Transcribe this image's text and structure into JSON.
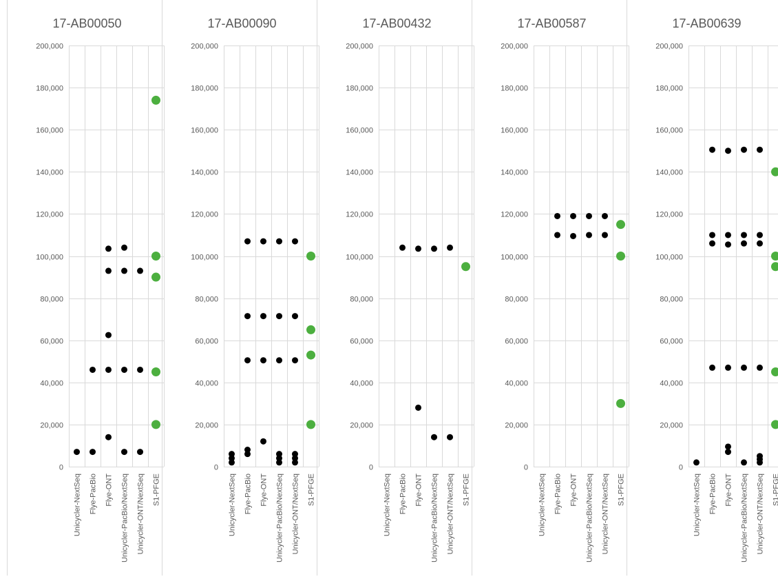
{
  "figure": {
    "colors": {
      "assembly_dot": "#000000",
      "pfge_dot": "#4caf3f",
      "gridline": "#d9d9d9",
      "text": "#595959"
    }
  },
  "chart_data": [
    {
      "type": "scatter",
      "title": "17-AB00050",
      "categories": [
        "Unicycler-NextSeq",
        "Flye-PacBio",
        "Flye-ONT",
        "Unicycler-PacBio/NextSeq",
        "Unicycler-ONT/NextSeq",
        "S1-PFGE"
      ],
      "ylim": [
        0,
        200000
      ],
      "yticks": [
        0,
        20000,
        40000,
        60000,
        80000,
        100000,
        120000,
        140000,
        160000,
        180000,
        200000
      ],
      "ytick_labels": [
        "0",
        "20,000",
        "40,000",
        "60,000",
        "80,000",
        "100,000",
        "120,000",
        "140,000",
        "160,000",
        "180,000",
        "200,000"
      ],
      "grid": true,
      "points": {
        "Unicycler-NextSeq": [
          7000
        ],
        "Flye-PacBio": [
          7000,
          46000
        ],
        "Flye-ONT": [
          14000,
          46000,
          62500,
          93000,
          103500
        ],
        "Unicycler-PacBio/NextSeq": [
          7000,
          46000,
          93000,
          104000
        ],
        "Unicycler-ONT/NextSeq": [
          7000,
          46000,
          93000
        ],
        "S1-PFGE": [
          20000,
          45000,
          90000,
          100000,
          174000
        ]
      }
    },
    {
      "type": "scatter",
      "title": "17-AB00090",
      "categories": [
        "Unicycler-NextSeq",
        "Flye-PacBio",
        "Flye-ONT",
        "Unicycler-PacBio/NextSeq",
        "Unicycler-ONT/NextSeq",
        "S1-PFGE"
      ],
      "ylim": [
        0,
        200000
      ],
      "yticks": [
        0,
        20000,
        40000,
        60000,
        80000,
        100000,
        120000,
        140000,
        160000,
        180000,
        200000
      ],
      "ytick_labels": [
        "0",
        "20,000",
        "40,000",
        "60,000",
        "80,000",
        "100,000",
        "120,000",
        "140,000",
        "160,000",
        "180,000",
        "200,000"
      ],
      "grid": true,
      "points": {
        "Unicycler-NextSeq": [
          2000,
          4000,
          6000
        ],
        "Flye-PacBio": [
          6000,
          8000,
          50500,
          71500,
          107000
        ],
        "Flye-ONT": [
          12000,
          50500,
          71500,
          107000
        ],
        "Unicycler-PacBio/NextSeq": [
          2000,
          4000,
          6000,
          50500,
          71500,
          107000
        ],
        "Unicycler-ONT/NextSeq": [
          2000,
          4000,
          6000,
          50500,
          71500,
          107000
        ],
        "S1-PFGE": [
          20000,
          53000,
          65000,
          100000
        ]
      }
    },
    {
      "type": "scatter",
      "title": "17-AB00432",
      "categories": [
        "Unicycler-NextSeq",
        "Flye-PacBio",
        "Flye-ONT",
        "Unicycler-PacBio/NextSeq",
        "Unicycler-ONT/NextSeq",
        "S1-PFGE"
      ],
      "ylim": [
        0,
        200000
      ],
      "yticks": [
        0,
        20000,
        40000,
        60000,
        80000,
        100000,
        120000,
        140000,
        160000,
        180000,
        200000
      ],
      "ytick_labels": [
        "0",
        "20,000",
        "40,000",
        "60,000",
        "80,000",
        "100,000",
        "120,000",
        "140,000",
        "160,000",
        "180,000",
        "200,000"
      ],
      "grid": true,
      "points": {
        "Unicycler-NextSeq": [],
        "Flye-PacBio": [
          104000
        ],
        "Flye-ONT": [
          28000,
          103500
        ],
        "Unicycler-PacBio/NextSeq": [
          14000,
          103500
        ],
        "Unicycler-ONT/NextSeq": [
          14000,
          104000
        ],
        "S1-PFGE": [
          95000
        ]
      }
    },
    {
      "type": "scatter",
      "title": "17-AB00587",
      "categories": [
        "Unicycler-NextSeq",
        "Flye-PacBio",
        "Flye-ONT",
        "Unicycler-PacBio/NextSeq",
        "Unicycler-ONT/NextSeq",
        "S1-PFGE"
      ],
      "ylim": [
        0,
        200000
      ],
      "yticks": [
        0,
        20000,
        40000,
        60000,
        80000,
        100000,
        120000,
        140000,
        160000,
        180000,
        200000
      ],
      "ytick_labels": [
        "0",
        "20,000",
        "40,000",
        "60,000",
        "80,000",
        "100,000",
        "120,000",
        "140,000",
        "160,000",
        "180,000",
        "200,000"
      ],
      "grid": true,
      "points": {
        "Unicycler-NextSeq": [],
        "Flye-PacBio": [
          110000,
          119000
        ],
        "Flye-ONT": [
          109500,
          119000
        ],
        "Unicycler-PacBio/NextSeq": [
          110000,
          119000
        ],
        "Unicycler-ONT/NextSeq": [
          110000,
          119000
        ],
        "S1-PFGE": [
          30000,
          100000,
          115000
        ]
      }
    },
    {
      "type": "scatter",
      "title": "17-AB00639",
      "categories": [
        "Unicycler-NextSeq",
        "Flye-PacBio",
        "Flye-ONT",
        "Unicycler-PacBio/NextSeq",
        "Unicycler-ONT/NextSeq",
        "S1-PFGE"
      ],
      "ylim": [
        0,
        200000
      ],
      "yticks": [
        0,
        20000,
        40000,
        60000,
        80000,
        100000,
        120000,
        140000,
        160000,
        180000,
        200000
      ],
      "ytick_labels": [
        "0",
        "20,000",
        "40,000",
        "60,000",
        "80,000",
        "100,000",
        "120,000",
        "140,000",
        "160,000",
        "180,000",
        "200,000"
      ],
      "grid": true,
      "points": {
        "Unicycler-NextSeq": [
          2000
        ],
        "Flye-PacBio": [
          47000,
          106000,
          110000,
          150500
        ],
        "Flye-ONT": [
          7000,
          9500,
          47000,
          105500,
          110000,
          150000
        ],
        "Unicycler-PacBio/NextSeq": [
          2000,
          47000,
          106000,
          110000,
          150500
        ],
        "Unicycler-ONT/NextSeq": [
          2000,
          3500,
          5000,
          47000,
          106000,
          110000,
          150500
        ],
        "S1-PFGE": [
          20000,
          45000,
          95000,
          100000,
          140000
        ]
      }
    }
  ]
}
